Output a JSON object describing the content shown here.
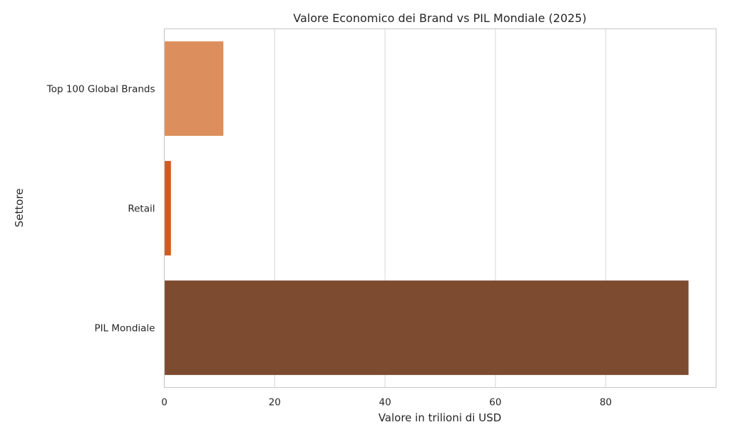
{
  "chart_data": {
    "type": "bar",
    "orientation": "horizontal",
    "title": "Valore Economico dei Brand vs PIL Mondiale (2025)",
    "xlabel": "Valore in trilioni di USD",
    "ylabel": "Settore",
    "xlim": [
      0,
      100
    ],
    "xticks": [
      0,
      20,
      40,
      60,
      80
    ],
    "grid": true,
    "categories": [
      "Top 100 Global Brands",
      "Retail",
      "PIL Mondiale"
    ],
    "values": [
      10.7,
      1.2,
      95.0
    ],
    "colors": [
      "#dc8f5c",
      "#d15b1f",
      "#7c4b30"
    ]
  }
}
